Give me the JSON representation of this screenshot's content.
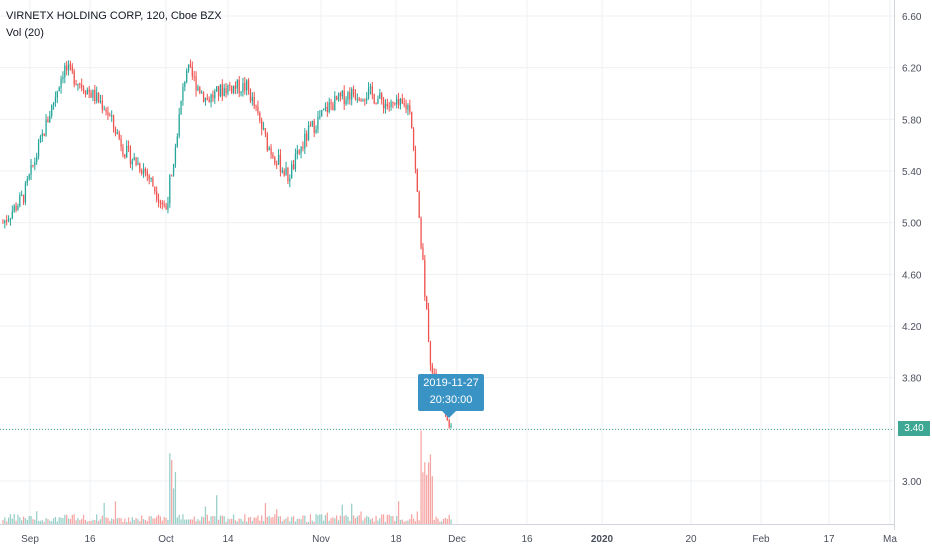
{
  "header": {
    "title": "VIRNETX HOLDING CORP, 120, Cboe BZX",
    "volume_label": "Vol (20)"
  },
  "tooltip": {
    "date": "2019-11-27",
    "time": "20:30:00"
  },
  "price_badge": "3.40",
  "colors": {
    "up": "#26a69a",
    "down": "#ef5350",
    "up_vol": "#99cfc8",
    "down_vol": "#f5a6a4",
    "grid": "#eef0f3",
    "tooltip": "#3a93c5",
    "last_price": "#3ea895"
  },
  "chart_data": {
    "type": "candlestick",
    "title": "VIRNETX HOLDING CORP, 120, Cboe BZX",
    "y_axis": {
      "ticks": [
        "6.60",
        "6.20",
        "5.80",
        "5.40",
        "5.00",
        "4.60",
        "4.20",
        "3.80",
        "3.40",
        "3.00"
      ],
      "range": [
        2.65,
        6.72
      ]
    },
    "x_axis": {
      "ticks": [
        "Sep",
        "16",
        "Oct",
        "14",
        "Nov",
        "18",
        "Dec",
        "16",
        "2020",
        "20",
        "Feb",
        "17",
        "Ma"
      ]
    },
    "last_price": 3.4,
    "indicator": "Vol (20)",
    "approx_closes_by_period": [
      {
        "x": "Sep",
        "close": 5.0
      },
      {
        "x": "Sep-09",
        "close": 5.2
      },
      {
        "x": "Sep-10",
        "close": 5.7
      },
      {
        "x": "Sep-12",
        "close": 6.2
      },
      {
        "x": "16",
        "close": 6.05
      },
      {
        "x": "Sep-20",
        "close": 5.9
      },
      {
        "x": "Sep-23",
        "close": 5.55
      },
      {
        "x": "Sep-26",
        "close": 5.4
      },
      {
        "x": "Sep-30",
        "close": 5.1
      },
      {
        "x": "Oct",
        "close": 6.2
      },
      {
        "x": "Oct-03",
        "close": 5.95
      },
      {
        "x": "Oct-08",
        "close": 6.05
      },
      {
        "x": "14",
        "close": 6.05
      },
      {
        "x": "Oct-17",
        "close": 5.6
      },
      {
        "x": "Oct-21",
        "close": 5.35
      },
      {
        "x": "Oct-24",
        "close": 5.7
      },
      {
        "x": "Oct-28",
        "close": 5.9
      },
      {
        "x": "Nov",
        "close": 6.0
      },
      {
        "x": "Nov-06",
        "close": 6.0
      },
      {
        "x": "Nov-12",
        "close": 5.9
      },
      {
        "x": "18",
        "close": 5.9
      },
      {
        "x": "Nov-22",
        "close": 3.9
      },
      {
        "x": "Nov-27",
        "close": 3.4
      }
    ]
  }
}
